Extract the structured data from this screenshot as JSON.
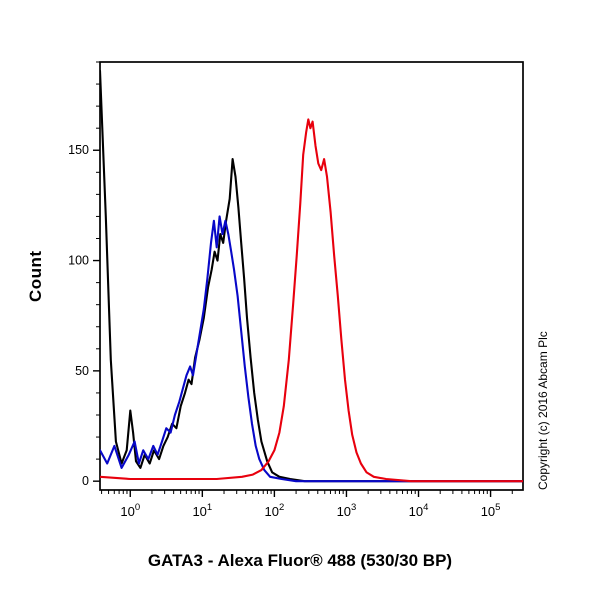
{
  "title": "GATA3 - Alexa Fluor® 488 (530/30 BP)",
  "copyright": "Copyright (c) 2016 Abcam Plc",
  "chart_data": {
    "type": "line",
    "subtype": "flow-cytometry-histogram",
    "title": "GATA3 - Alexa Fluor® 488 (530/30 BP)",
    "xlabel": "GATA3 - Alexa Fluor® 488 (530/30 BP)",
    "ylabel": "Count",
    "x_scale": "log10",
    "xlog_range": [
      -0.42,
      5.45
    ],
    "y_range": [
      -4,
      190
    ],
    "x_tick_base": "10",
    "x_tick_exponents": [
      0,
      1,
      2,
      3,
      4,
      5
    ],
    "y_ticks": [
      0,
      50,
      100,
      150
    ],
    "y_minor_step": 10,
    "grid": false,
    "legend": "none",
    "frame_color": "#000000",
    "series": [
      {
        "name": "black-curve",
        "color": "#000000",
        "points": [
          [
            -0.42,
            186
          ],
          [
            -0.34,
            120
          ],
          [
            -0.27,
            55
          ],
          [
            -0.2,
            18
          ],
          [
            -0.12,
            8
          ],
          [
            -0.05,
            14
          ],
          [
            0.0,
            32
          ],
          [
            0.04,
            22
          ],
          [
            0.08,
            9
          ],
          [
            0.14,
            6
          ],
          [
            0.2,
            12
          ],
          [
            0.27,
            8
          ],
          [
            0.33,
            14
          ],
          [
            0.4,
            10
          ],
          [
            0.46,
            16
          ],
          [
            0.52,
            20
          ],
          [
            0.58,
            26
          ],
          [
            0.64,
            24
          ],
          [
            0.7,
            34
          ],
          [
            0.76,
            40
          ],
          [
            0.81,
            46
          ],
          [
            0.85,
            44
          ],
          [
            0.9,
            56
          ],
          [
            0.96,
            64
          ],
          [
            1.02,
            74
          ],
          [
            1.08,
            88
          ],
          [
            1.13,
            96
          ],
          [
            1.17,
            104
          ],
          [
            1.21,
            100
          ],
          [
            1.25,
            112
          ],
          [
            1.29,
            108
          ],
          [
            1.33,
            118
          ],
          [
            1.38,
            128
          ],
          [
            1.42,
            146
          ],
          [
            1.46,
            138
          ],
          [
            1.5,
            124
          ],
          [
            1.54,
            108
          ],
          [
            1.58,
            92
          ],
          [
            1.62,
            74
          ],
          [
            1.67,
            56
          ],
          [
            1.72,
            40
          ],
          [
            1.77,
            28
          ],
          [
            1.82,
            18
          ],
          [
            1.9,
            9
          ],
          [
            1.97,
            4
          ],
          [
            2.07,
            2
          ],
          [
            2.22,
            1
          ],
          [
            2.42,
            0
          ],
          [
            5.45,
            0
          ]
        ]
      },
      {
        "name": "blue-curve",
        "color": "#0808c8",
        "points": [
          [
            -0.42,
            14
          ],
          [
            -0.32,
            8
          ],
          [
            -0.22,
            16
          ],
          [
            -0.12,
            6
          ],
          [
            -0.02,
            12
          ],
          [
            0.06,
            18
          ],
          [
            0.12,
            8
          ],
          [
            0.18,
            14
          ],
          [
            0.25,
            10
          ],
          [
            0.32,
            16
          ],
          [
            0.38,
            12
          ],
          [
            0.44,
            18
          ],
          [
            0.5,
            24
          ],
          [
            0.56,
            22
          ],
          [
            0.62,
            30
          ],
          [
            0.68,
            36
          ],
          [
            0.73,
            42
          ],
          [
            0.78,
            48
          ],
          [
            0.83,
            52
          ],
          [
            0.87,
            48
          ],
          [
            0.92,
            58
          ],
          [
            0.97,
            68
          ],
          [
            1.02,
            78
          ],
          [
            1.07,
            92
          ],
          [
            1.12,
            108
          ],
          [
            1.16,
            118
          ],
          [
            1.2,
            106
          ],
          [
            1.24,
            120
          ],
          [
            1.28,
            112
          ],
          [
            1.32,
            118
          ],
          [
            1.36,
            112
          ],
          [
            1.4,
            104
          ],
          [
            1.44,
            96
          ],
          [
            1.49,
            84
          ],
          [
            1.54,
            68
          ],
          [
            1.59,
            52
          ],
          [
            1.64,
            38
          ],
          [
            1.69,
            26
          ],
          [
            1.74,
            16
          ],
          [
            1.79,
            10
          ],
          [
            1.86,
            5
          ],
          [
            1.94,
            2
          ],
          [
            2.1,
            1
          ],
          [
            2.3,
            0
          ],
          [
            5.45,
            0
          ]
        ]
      },
      {
        "name": "red-curve",
        "color": "#e8000d",
        "points": [
          [
            -0.42,
            2
          ],
          [
            0.0,
            1
          ],
          [
            0.6,
            1
          ],
          [
            1.2,
            1
          ],
          [
            1.55,
            2
          ],
          [
            1.7,
            3
          ],
          [
            1.82,
            5
          ],
          [
            1.92,
            9
          ],
          [
            2.0,
            14
          ],
          [
            2.07,
            22
          ],
          [
            2.13,
            34
          ],
          [
            2.2,
            55
          ],
          [
            2.26,
            80
          ],
          [
            2.31,
            102
          ],
          [
            2.36,
            126
          ],
          [
            2.4,
            148
          ],
          [
            2.44,
            158
          ],
          [
            2.47,
            164
          ],
          [
            2.5,
            160
          ],
          [
            2.53,
            163
          ],
          [
            2.57,
            152
          ],
          [
            2.61,
            144
          ],
          [
            2.65,
            141
          ],
          [
            2.69,
            146
          ],
          [
            2.73,
            138
          ],
          [
            2.78,
            122
          ],
          [
            2.83,
            102
          ],
          [
            2.88,
            84
          ],
          [
            2.93,
            64
          ],
          [
            2.98,
            46
          ],
          [
            3.03,
            32
          ],
          [
            3.08,
            21
          ],
          [
            3.14,
            13
          ],
          [
            3.2,
            8
          ],
          [
            3.28,
            4
          ],
          [
            3.38,
            2
          ],
          [
            3.55,
            1
          ],
          [
            3.9,
            0
          ],
          [
            5.45,
            0
          ]
        ]
      }
    ]
  }
}
